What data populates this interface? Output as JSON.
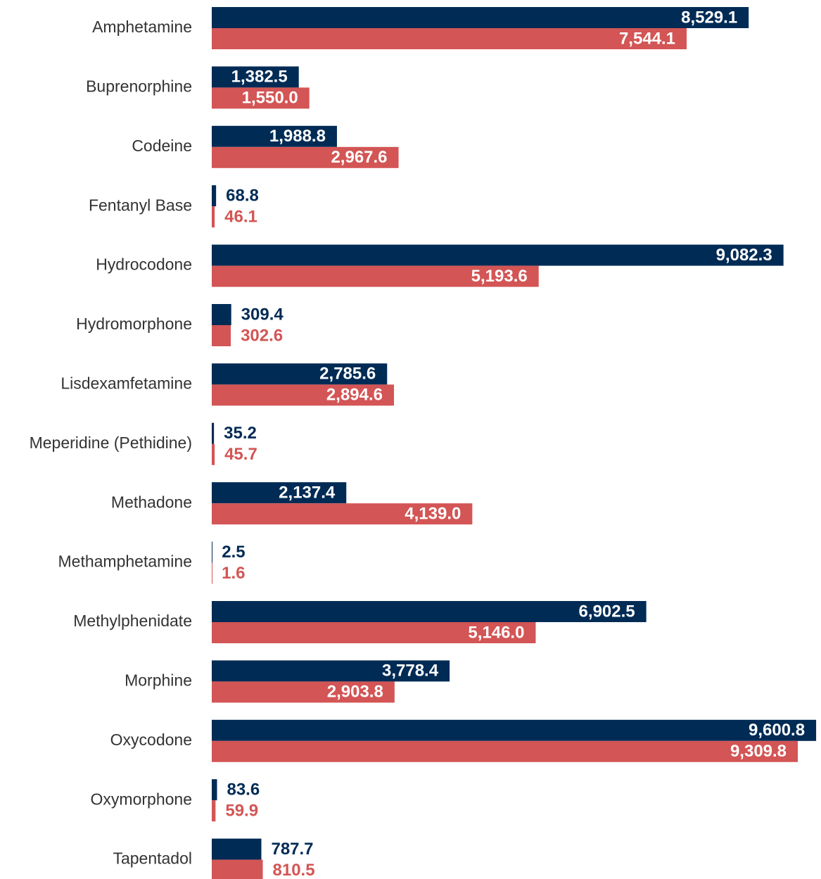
{
  "chart_data": {
    "type": "bar",
    "orientation": "horizontal",
    "categories": [
      "Amphetamine",
      "Buprenorphine",
      "Codeine",
      "Fentanyl Base",
      "Hydrocodone",
      "Hydromorphone",
      "Lisdexamfetamine",
      "Meperidine (Pethidine)",
      "Methadone",
      "Methamphetamine",
      "Methylphenidate",
      "Morphine",
      "Oxycodone",
      "Oxymorphone",
      "Tapentadol"
    ],
    "series": [
      {
        "color": "#002b55",
        "values": [
          8529.1,
          1382.5,
          1988.8,
          68.8,
          9082.3,
          309.4,
          2785.6,
          35.2,
          2137.4,
          2.5,
          6902.5,
          3778.4,
          9600.8,
          83.6,
          787.7
        ],
        "value_labels": [
          "8,529.1",
          "1,382.5",
          "1,988.8",
          "68.8",
          "9,082.3",
          "309.4",
          "2,785.6",
          "35.2",
          "2,137.4",
          "2.5",
          "6,902.5",
          "3,778.4",
          "9,600.8",
          "83.6",
          "787.7"
        ]
      },
      {
        "color": "#d35555",
        "values": [
          7544.1,
          1550.0,
          2967.6,
          46.1,
          5193.6,
          302.6,
          2894.6,
          45.7,
          4139.0,
          1.6,
          5146.0,
          2903.8,
          9309.8,
          59.9,
          810.5
        ],
        "value_labels": [
          "7,544.1",
          "1,550.0",
          "2,967.6",
          "46.1",
          "5,193.6",
          "302.6",
          "2,894.6",
          "45.7",
          "4,139.0",
          "1.6",
          "5,146.0",
          "2,903.8",
          "9,309.8",
          "59.9",
          "810.5"
        ]
      }
    ],
    "xlim": [
      0,
      9600
    ]
  }
}
